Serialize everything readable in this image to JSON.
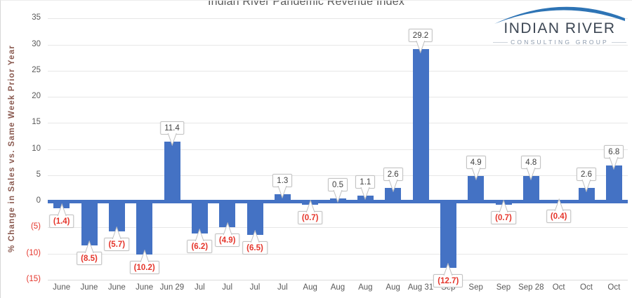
{
  "header": {
    "title": "Indian River Pandemic Revenue Index"
  },
  "logo": {
    "line1": "INDIAN RIVER",
    "line2": "CONSULTING GROUP"
  },
  "chart_data": {
    "type": "bar",
    "title": "Indian River Pandemic Revenue Index",
    "xlabel": "",
    "ylabel": "% Change in Sales vs. Same Week Prior Year",
    "categories": [
      "June",
      "June",
      "June",
      "June",
      "Jun 29",
      "Jul",
      "Jul",
      "Jul",
      "Jul",
      "Aug",
      "Aug",
      "Aug",
      "Aug",
      "Aug 31",
      "Sep",
      "Sep",
      "Sep",
      "Sep 28",
      "Oct",
      "Oct",
      "Oct"
    ],
    "values": [
      -1.4,
      -8.5,
      -5.7,
      -10.2,
      11.4,
      -6.2,
      -4.9,
      -6.5,
      1.3,
      -0.7,
      0.5,
      1.1,
      2.6,
      29.2,
      -12.7,
      4.9,
      -0.7,
      4.8,
      -0.4,
      2.6,
      6.8
    ],
    "value_labels": [
      "(1.4)",
      "(8.5)",
      "(5.7)",
      "(10.2)",
      "11.4",
      "(6.2)",
      "(4.9)",
      "(6.5)",
      "1.3",
      "(0.7)",
      "0.5",
      "1.1",
      "2.6",
      "29.2",
      "(12.7)",
      "4.9",
      "(0.7)",
      "4.8",
      "(0.4)",
      "2.6",
      "6.8"
    ],
    "ylim": [
      -15,
      35
    ],
    "ytick_values": [
      35,
      30,
      25,
      20,
      15,
      10,
      5,
      0,
      -5,
      -10,
      -15
    ],
    "ytick_labels": [
      "35",
      "30",
      "25",
      "20",
      "15",
      "10",
      "5",
      "0",
      "(5)",
      "(10)",
      "(15)"
    ],
    "grid": true,
    "legend": "none",
    "colors": {
      "bar": "#4472c4",
      "zero_axis_line": "#4472c4",
      "negative_text": "#e5352b",
      "positive_text": "#3f3f3f",
      "tick_text": "#595959",
      "y_title_text": "#8a5a50",
      "gridline": "#e7e7e7",
      "logo_arc": "#2e74b5",
      "logo_name": "#3d4754",
      "logo_sub": "#8b99ab"
    }
  }
}
